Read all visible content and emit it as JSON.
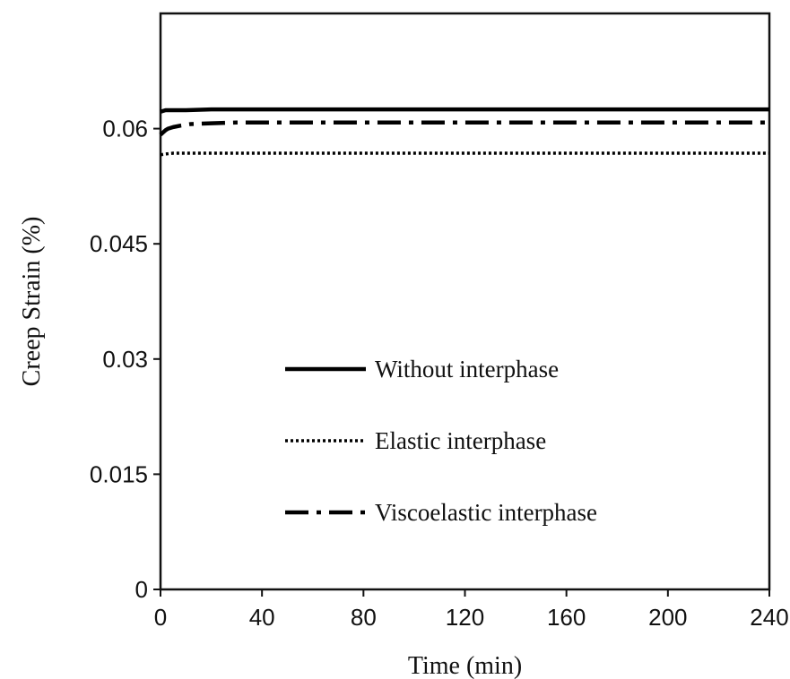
{
  "chart_data": {
    "type": "line",
    "title": "",
    "xlabel": "Time (min)",
    "ylabel": "Creep Strain (%)",
    "xlim": [
      0,
      240
    ],
    "ylim": [
      0,
      0.075
    ],
    "x_ticks": [
      "0",
      "40",
      "80",
      "120",
      "160",
      "200",
      "240"
    ],
    "y_ticks": [
      "0",
      "0.015",
      "0.03",
      "0.045",
      "0.06"
    ],
    "legend_position": "center-left",
    "grid": false,
    "series": [
      {
        "name": "Without interphase",
        "style": "solid",
        "color": "#000000",
        "x": [
          0,
          2,
          5,
          10,
          20,
          40,
          80,
          120,
          160,
          200,
          240
        ],
        "y": [
          0.0622,
          0.0624,
          0.0624,
          0.0624,
          0.0625,
          0.0625,
          0.0625,
          0.0625,
          0.0625,
          0.0625,
          0.0625
        ]
      },
      {
        "name": "Elastic interphase",
        "style": "dotted",
        "color": "#000000",
        "x": [
          0,
          2,
          5,
          10,
          20,
          40,
          80,
          120,
          160,
          200,
          240
        ],
        "y": [
          0.0566,
          0.0567,
          0.0568,
          0.0568,
          0.0568,
          0.0568,
          0.0568,
          0.0568,
          0.0568,
          0.0568,
          0.0568
        ]
      },
      {
        "name": "Viscoelastic interphase",
        "style": "dash-dot",
        "color": "#000000",
        "x": [
          0,
          1,
          2,
          3,
          5,
          8,
          12,
          20,
          30,
          40,
          80,
          120,
          160,
          200,
          240
        ],
        "y": [
          0.0592,
          0.0595,
          0.0598,
          0.06,
          0.0602,
          0.0604,
          0.0606,
          0.0607,
          0.0608,
          0.0608,
          0.0608,
          0.0608,
          0.0608,
          0.0608,
          0.0608
        ]
      }
    ]
  }
}
